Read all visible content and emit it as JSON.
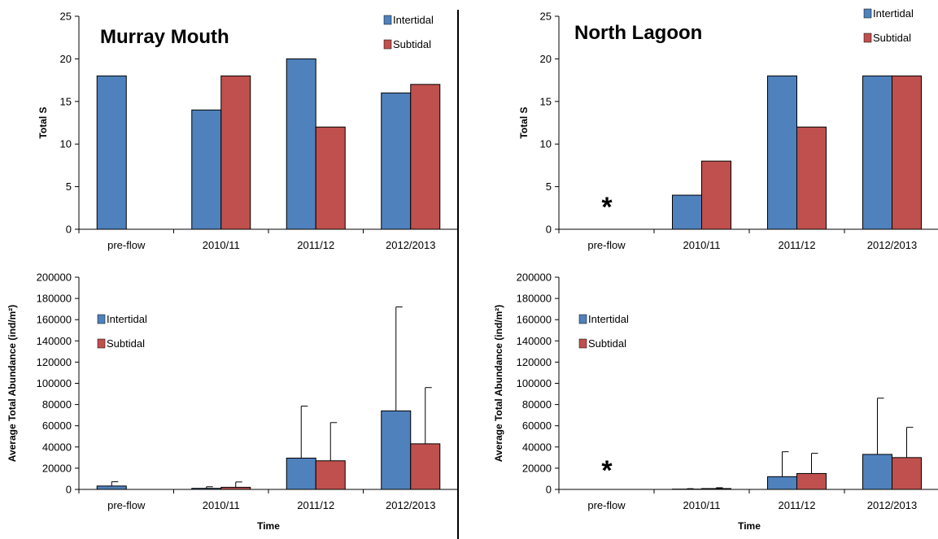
{
  "colors": {
    "intertidal": "#4F81BD",
    "subtidal": "#C0504D",
    "bar_stroke": "#000000",
    "axis": "#000000",
    "divider": "#000000"
  },
  "chart_data": [
    {
      "id": "mm_s",
      "type": "bar",
      "title": "Murray Mouth",
      "xlabel": "",
      "ylabel": "Total S",
      "categories": [
        "pre-flow",
        "2010/11",
        "2011/12",
        "2012/2013"
      ],
      "series": [
        {
          "name": "Intertidal",
          "values": [
            18,
            14,
            20,
            16
          ]
        },
        {
          "name": "Subtidal",
          "values": [
            null,
            18,
            12,
            17
          ]
        }
      ],
      "ylim": [
        0,
        25
      ],
      "yticks": [
        "0",
        "5",
        "10",
        "15",
        "20",
        "25"
      ],
      "legend": "top-right",
      "annotation": ""
    },
    {
      "id": "nl_s",
      "type": "bar",
      "title": "North Lagoon",
      "xlabel": "",
      "ylabel": "Total S",
      "categories": [
        "pre-flow",
        "2010/11",
        "2011/12",
        "2012/2013"
      ],
      "series": [
        {
          "name": "Intertidal",
          "values": [
            null,
            4,
            18,
            18
          ]
        },
        {
          "name": "Subtidal",
          "values": [
            null,
            8,
            12,
            18
          ]
        }
      ],
      "ylim": [
        0,
        25
      ],
      "yticks": [
        "0",
        "5",
        "10",
        "15",
        "20",
        "25"
      ],
      "legend": "top-right",
      "annotation": "*"
    },
    {
      "id": "mm_ab",
      "type": "bar",
      "title": "",
      "xlabel": "Time",
      "ylabel": "Average Total Abundance (ind/m²)",
      "categories": [
        "pre-flow",
        "2010/11",
        "2011/12",
        "2012/2013"
      ],
      "series": [
        {
          "name": "Intertidal",
          "values": [
            3200,
            1000,
            29500,
            74000
          ],
          "error_plus": [
            4000,
            1500,
            49000,
            98000
          ]
        },
        {
          "name": "Subtidal",
          "values": [
            null,
            2000,
            27000,
            43000
          ],
          "error_plus": [
            null,
            5000,
            36000,
            53000
          ]
        }
      ],
      "ylim": [
        0,
        200000
      ],
      "yticks": [
        "0",
        "20000",
        "40000",
        "60000",
        "80000",
        "100000",
        "120000",
        "140000",
        "160000",
        "180000",
        "200000"
      ],
      "legend": "top-left",
      "annotation": ""
    },
    {
      "id": "nl_ab",
      "type": "bar",
      "title": "",
      "xlabel": "Time",
      "ylabel": "Average Total Abundance (ind/m²)",
      "categories": [
        "pre-flow",
        "2010/11",
        "2011/12",
        "2012/2013"
      ],
      "series": [
        {
          "name": "Intertidal",
          "values": [
            null,
            300,
            12000,
            33000
          ],
          "error_plus": [
            null,
            400,
            23500,
            53000
          ]
        },
        {
          "name": "Subtidal",
          "values": [
            null,
            800,
            15000,
            30000
          ],
          "error_plus": [
            null,
            800,
            19000,
            28500
          ]
        }
      ],
      "ylim": [
        0,
        200000
      ],
      "yticks": [
        "0",
        "20000",
        "40000",
        "60000",
        "80000",
        "100000",
        "120000",
        "140000",
        "160000",
        "180000",
        "200000"
      ],
      "legend": "top-left",
      "annotation": "*"
    }
  ]
}
